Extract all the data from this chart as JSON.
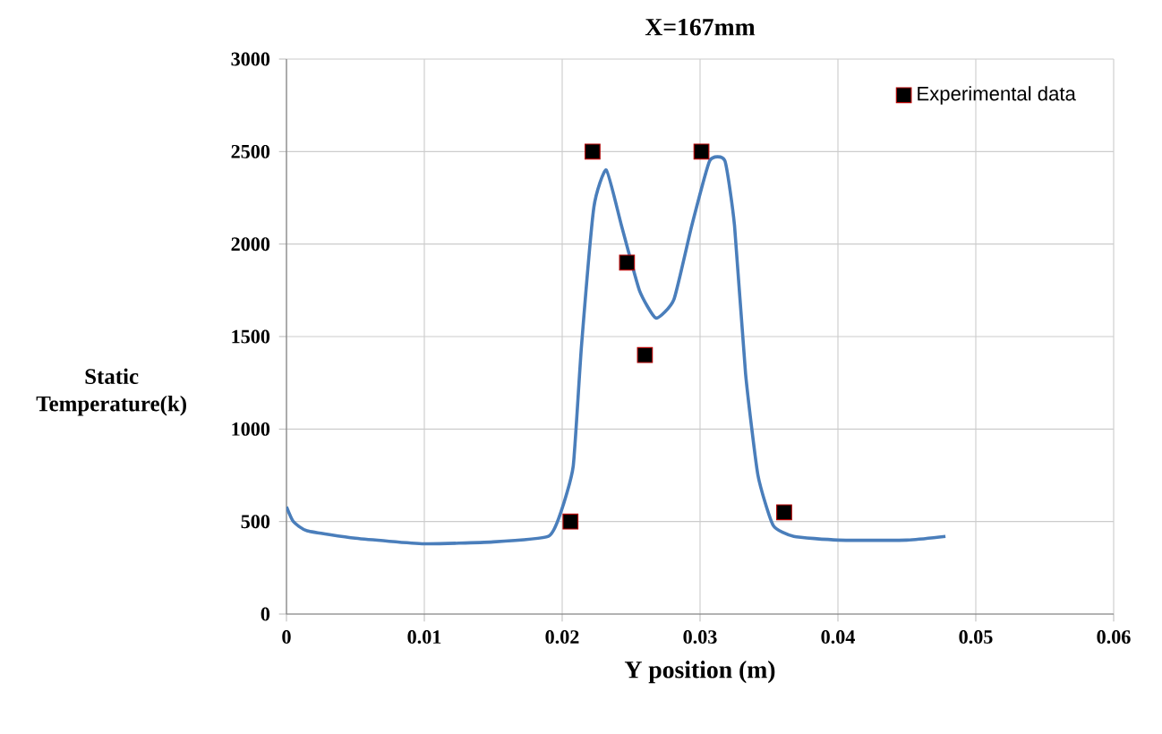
{
  "chart_data": {
    "type": "line",
    "title": "X=167mm",
    "xlabel": "Y position (m)",
    "ylabel": "Static Temperature(k)",
    "xlim": [
      0,
      0.06
    ],
    "xticks": [
      0,
      0.01,
      0.02,
      0.03,
      0.04,
      0.05,
      0.06
    ],
    "ylim": [
      0,
      3000
    ],
    "yticks": [
      0,
      500,
      1000,
      1500,
      2000,
      2500,
      3000
    ],
    "grid": true,
    "legend": "top right",
    "series": [
      {
        "color": "#4a7ebb",
        "marker": "none",
        "x": [
          0,
          0.0005,
          0.0015,
          0.005,
          0.01,
          0.015,
          0.019,
          0.0199,
          0.0208,
          0.0214,
          0.0223,
          0.0232,
          0.0243,
          0.0256,
          0.0268,
          0.0281,
          0.0294,
          0.0307,
          0.0318,
          0.0325,
          0.0333,
          0.0342,
          0.0353,
          0.0368,
          0.04,
          0.045,
          0.0478
        ],
        "values": [
          580,
          500,
          450,
          410,
          380,
          390,
          420,
          550,
          800,
          1450,
          2200,
          2400,
          2100,
          1750,
          1600,
          1700,
          2100,
          2450,
          2450,
          2100,
          1300,
          750,
          480,
          420,
          400,
          400,
          420
        ]
      },
      {
        "type": "scatter",
        "name": "Experimental data",
        "color": "#000000",
        "marker": "square",
        "x": [
          0.0206,
          0.0222,
          0.0247,
          0.026,
          0.0301,
          0.0361
        ],
        "values": [
          500,
          2500,
          1900,
          1400,
          2500,
          550
        ]
      }
    ]
  }
}
